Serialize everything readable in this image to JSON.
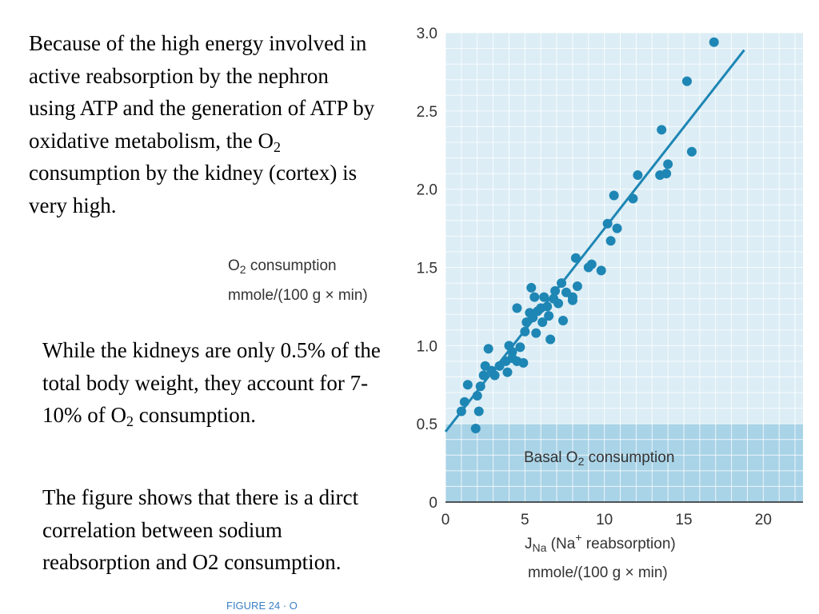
{
  "text": {
    "p1_before": "Because of the high energy involved in active reabsorption by the nephron using ATP and the generation of ATP by oxidative metabolism, the O",
    "p1_sub": "2",
    "p1_after": " consumption by the kidney (cortex) is very high.",
    "p2_before": "While the kidneys are only 0.5% of the total body weight, they account for 7-10% of O",
    "p2_sub": "2",
    "p2_after": " consumption.",
    "p3": "The figure shows that there is a dirct correlation between sodium reabsorption and O2 consumption.",
    "caption": "FIGURE 24 · O"
  },
  "colors": {
    "plot_bg": "#dcedf5",
    "basal_bg": "#a9d3e7",
    "grid": "#ffffff",
    "point": "#1e86b4",
    "line": "#1e86b4",
    "axis_text": "#333333"
  },
  "chart_data": {
    "type": "scatter",
    "ylabel": {
      "prefix": "O",
      "sub": "2",
      "suffix": " consumption",
      "line2": "mmole/(100 g × min)"
    },
    "xlabel": {
      "prefix": "J",
      "sub": "Na",
      "mid": " (Na",
      "sup": "+",
      "suffix": " reabsorption)",
      "line2": "mmole/(100 g × min)"
    },
    "xlim": [
      0,
      22.5
    ],
    "ylim": [
      0,
      3.0
    ],
    "xticks": [
      "0",
      "5",
      "10",
      "15",
      "20"
    ],
    "yticks": [
      "0",
      "0.5",
      "1.0",
      "1.5",
      "2.0",
      "2.5",
      "3.0"
    ],
    "grid": true,
    "basal": {
      "label_prefix": "Basal O",
      "label_sub": "2",
      "label_suffix": " consumption",
      "y_max": 0.5
    },
    "trendline": [
      [
        0,
        0.45
      ],
      [
        18.8,
        2.89
      ]
    ],
    "points": [
      [
        1.0,
        0.58
      ],
      [
        1.2,
        0.64
      ],
      [
        1.4,
        0.75
      ],
      [
        1.9,
        0.47
      ],
      [
        2.0,
        0.68
      ],
      [
        2.1,
        0.58
      ],
      [
        2.2,
        0.74
      ],
      [
        2.4,
        0.81
      ],
      [
        2.5,
        0.87
      ],
      [
        2.7,
        0.98
      ],
      [
        2.9,
        0.84
      ],
      [
        3.1,
        0.81
      ],
      [
        3.4,
        0.87
      ],
      [
        3.8,
        0.9
      ],
      [
        3.9,
        0.83
      ],
      [
        4.0,
        1.0
      ],
      [
        4.2,
        0.96
      ],
      [
        4.2,
        0.92
      ],
      [
        4.5,
        0.9
      ],
      [
        4.7,
        0.99
      ],
      [
        4.5,
        1.24
      ],
      [
        4.9,
        0.89
      ],
      [
        5.0,
        1.09
      ],
      [
        5.1,
        1.15
      ],
      [
        5.3,
        1.21
      ],
      [
        5.4,
        1.37
      ],
      [
        5.5,
        1.18
      ],
      [
        5.6,
        1.31
      ],
      [
        5.7,
        1.08
      ],
      [
        5.8,
        1.22
      ],
      [
        6.0,
        1.24
      ],
      [
        6.1,
        1.15
      ],
      [
        6.2,
        1.31
      ],
      [
        6.4,
        1.25
      ],
      [
        6.5,
        1.19
      ],
      [
        6.6,
        1.04
      ],
      [
        6.8,
        1.3
      ],
      [
        6.9,
        1.35
      ],
      [
        7.1,
        1.27
      ],
      [
        7.3,
        1.4
      ],
      [
        7.4,
        1.16
      ],
      [
        7.6,
        1.34
      ],
      [
        8.0,
        1.31
      ],
      [
        8.0,
        1.29
      ],
      [
        8.2,
        1.56
      ],
      [
        8.3,
        1.38
      ],
      [
        9.0,
        1.5
      ],
      [
        9.2,
        1.52
      ],
      [
        9.8,
        1.48
      ],
      [
        10.2,
        1.78
      ],
      [
        10.4,
        1.67
      ],
      [
        10.6,
        1.96
      ],
      [
        10.8,
        1.75
      ],
      [
        11.8,
        1.94
      ],
      [
        12.1,
        2.09
      ],
      [
        13.5,
        2.09
      ],
      [
        13.6,
        2.38
      ],
      [
        13.9,
        2.1
      ],
      [
        14.0,
        2.16
      ],
      [
        15.2,
        2.69
      ],
      [
        15.5,
        2.24
      ],
      [
        16.9,
        2.94
      ]
    ]
  }
}
